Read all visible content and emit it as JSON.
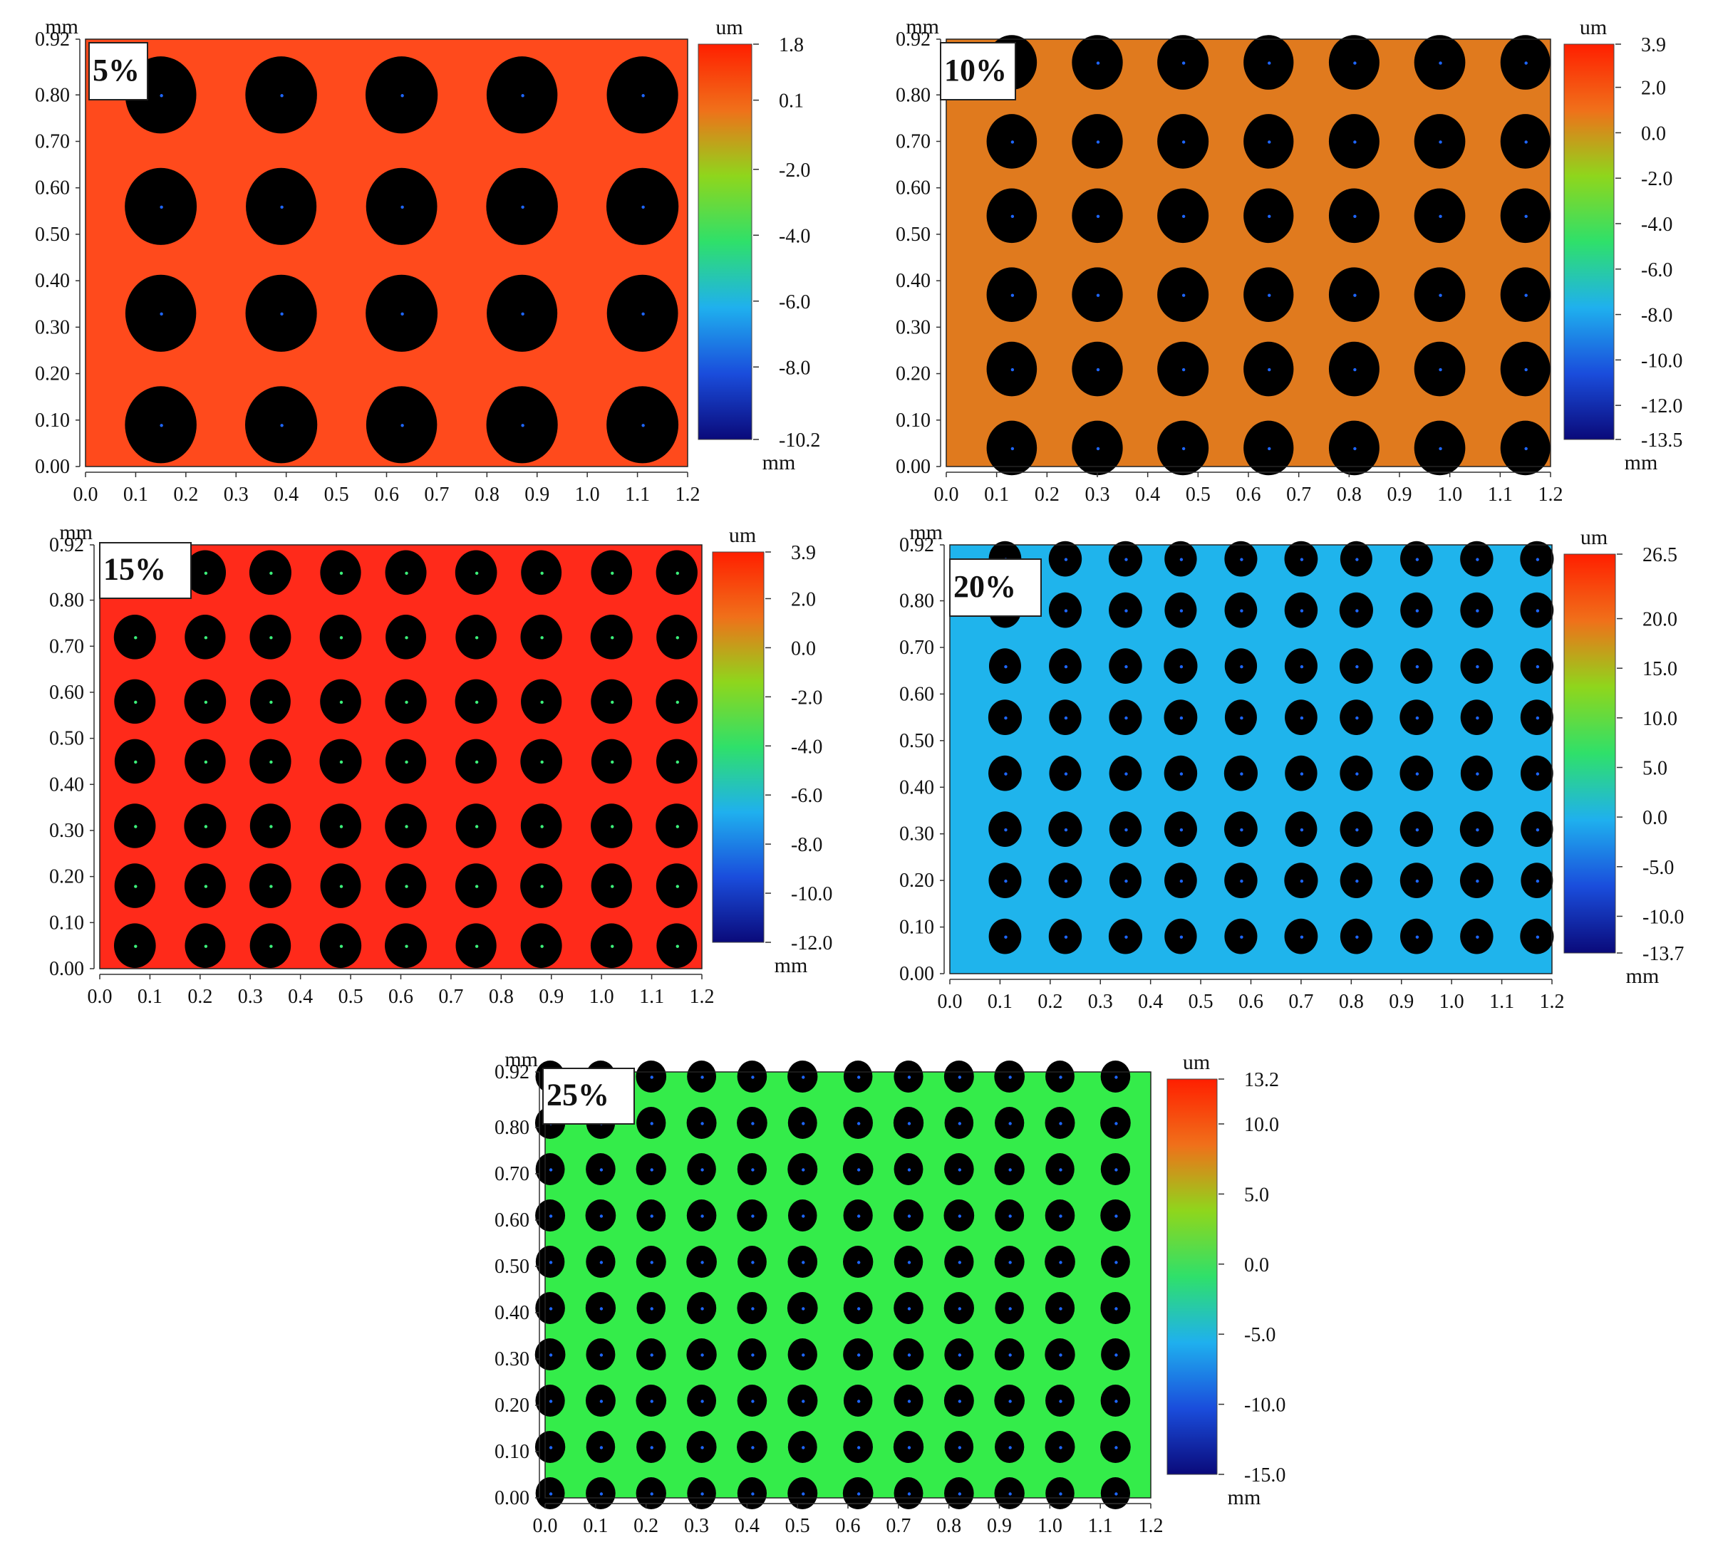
{
  "chart_data": [
    {
      "type": "heatmap",
      "label": "5%",
      "xlabel": "",
      "ylabel": "mm",
      "xunit": "",
      "colorbar_unit_top": "um",
      "colorbar_unit_bottom": "mm",
      "xlim": [
        0.0,
        1.2
      ],
      "ylim": [
        0.0,
        0.92
      ],
      "x_ticks": [
        "0.0",
        "0.1",
        "0.2",
        "0.3",
        "0.4",
        "0.5",
        "0.6",
        "0.7",
        "0.8",
        "0.9",
        "1.0",
        "1.1",
        "1.2"
      ],
      "y_ticks": [
        "0.92",
        "0.80",
        "0.70",
        "0.60",
        "0.50",
        "0.40",
        "0.30",
        "0.20",
        "0.10",
        "0.00"
      ],
      "colorbar_ticks": [
        "1.8",
        "0.1",
        "-2.0",
        "-4.0",
        "-6.0",
        "-8.0",
        "-10.2"
      ],
      "colorbar_range": [
        -10.2,
        1.8
      ],
      "background_color": "#ff4a1c",
      "dot_grid": {
        "x": [
          0.15,
          0.39,
          0.63,
          0.87,
          1.11
        ],
        "y": [
          0.8,
          0.56,
          0.33,
          0.09
        ]
      },
      "dot_marker": "#1e66ff"
    },
    {
      "type": "heatmap",
      "label": "10%",
      "xlabel": "",
      "ylabel": "mm",
      "colorbar_unit_top": "um",
      "colorbar_unit_bottom": "mm",
      "xlim": [
        0.0,
        1.2
      ],
      "ylim": [
        0.0,
        0.92
      ],
      "x_ticks": [
        "0.0",
        "0.1",
        "0.2",
        "0.3",
        "0.4",
        "0.5",
        "0.6",
        "0.7",
        "0.8",
        "0.9",
        "1.0",
        "1.1",
        "1.2"
      ],
      "y_ticks": [
        "0.92",
        "0.80",
        "0.70",
        "0.60",
        "0.50",
        "0.40",
        "0.30",
        "0.20",
        "0.10",
        "0.00"
      ],
      "colorbar_ticks": [
        "3.9",
        "2.0",
        "0.0",
        "-2.0",
        "-4.0",
        "-6.0",
        "-8.0",
        "-10.0",
        "-12.0",
        "-13.5"
      ],
      "colorbar_range": [
        -13.5,
        3.9
      ],
      "background_color": "#e07a1e",
      "dot_grid": {
        "x": [
          0.13,
          0.3,
          0.47,
          0.64,
          0.81,
          0.98,
          1.15
        ],
        "y": [
          0.87,
          0.7,
          0.54,
          0.37,
          0.21,
          0.04
        ]
      },
      "dot_marker": "#1e66ff"
    },
    {
      "type": "heatmap",
      "label": "15%",
      "xlabel": "",
      "ylabel": "mm",
      "colorbar_unit_top": "um",
      "colorbar_unit_bottom": "mm",
      "xlim": [
        0.0,
        1.2
      ],
      "ylim": [
        0.0,
        0.92
      ],
      "x_ticks": [
        "0.0",
        "0.1",
        "0.2",
        "0.3",
        "0.4",
        "0.5",
        "0.6",
        "0.7",
        "0.8",
        "0.9",
        "1.0",
        "1.1",
        "1.2"
      ],
      "y_ticks": [
        "0.92",
        "0.80",
        "0.70",
        "0.60",
        "0.50",
        "0.40",
        "0.30",
        "0.20",
        "0.10",
        "0.00"
      ],
      "colorbar_ticks": [
        "3.9",
        "2.0",
        "0.0",
        "-2.0",
        "-4.0",
        "-6.0",
        "-8.0",
        "-10.0",
        "-12.0"
      ],
      "colorbar_range": [
        -12.0,
        3.9
      ],
      "background_color": "#ff2a1a",
      "dot_grid": {
        "x": [
          0.07,
          0.21,
          0.34,
          0.48,
          0.61,
          0.75,
          0.88,
          1.02,
          1.15
        ],
        "y": [
          0.86,
          0.72,
          0.58,
          0.45,
          0.31,
          0.18,
          0.05
        ]
      },
      "dot_marker": "#3cf07a"
    },
    {
      "type": "heatmap",
      "label": "20%",
      "xlabel": "",
      "ylabel": "mm",
      "colorbar_unit_top": "um",
      "colorbar_unit_bottom": "mm",
      "xlim": [
        0.0,
        1.2
      ],
      "ylim": [
        0.0,
        0.92
      ],
      "x_ticks": [
        "0.0",
        "0.1",
        "0.2",
        "0.3",
        "0.4",
        "0.5",
        "0.6",
        "0.7",
        "0.8",
        "0.9",
        "1.0",
        "1.1",
        "1.2"
      ],
      "y_ticks": [
        "0.92",
        "0.80",
        "0.70",
        "0.60",
        "0.50",
        "0.40",
        "0.30",
        "0.20",
        "0.10",
        "0.00"
      ],
      "colorbar_ticks": [
        "26.5",
        "20.0",
        "15.0",
        "10.0",
        "5.0",
        "0.0",
        "-5.0",
        "-10.0",
        "-13.7"
      ],
      "colorbar_range": [
        -13.7,
        26.5
      ],
      "background_color": "#1fb4ec",
      "dot_grid": {
        "x": [
          0.11,
          0.23,
          0.35,
          0.46,
          0.58,
          0.7,
          0.81,
          0.93,
          1.05,
          1.17
        ],
        "y": [
          0.89,
          0.78,
          0.66,
          0.55,
          0.43,
          0.31,
          0.2,
          0.08
        ]
      },
      "dot_marker": "#1e66ff"
    },
    {
      "type": "heatmap",
      "label": "25%",
      "xlabel": "",
      "ylabel": "mm",
      "colorbar_unit_top": "um",
      "colorbar_unit_bottom": "mm",
      "xlim": [
        0.0,
        1.2
      ],
      "ylim": [
        0.0,
        0.92
      ],
      "x_ticks": [
        "0.0",
        "0.1",
        "0.2",
        "0.3",
        "0.4",
        "0.5",
        "0.6",
        "0.7",
        "0.8",
        "0.9",
        "1.0",
        "1.1",
        "1.2"
      ],
      "y_ticks": [
        "0.92",
        "0.80",
        "0.70",
        "0.60",
        "0.50",
        "0.40",
        "0.30",
        "0.20",
        "0.10",
        "0.00"
      ],
      "colorbar_ticks": [
        "13.2",
        "10.0",
        "5.0",
        "0.0",
        "-5.0",
        "-10.0",
        "-15.0"
      ],
      "colorbar_range": [
        -15.0,
        13.2
      ],
      "background_color": "#34ec4a",
      "dot_grid": {
        "x": [
          0.01,
          0.11,
          0.21,
          0.31,
          0.41,
          0.51,
          0.62,
          0.72,
          0.82,
          0.92,
          1.02,
          1.13
        ],
        "y": [
          0.91,
          0.81,
          0.71,
          0.61,
          0.51,
          0.41,
          0.31,
          0.21,
          0.11,
          0.01
        ]
      },
      "dot_marker": "#1e66ff"
    }
  ],
  "colors": {
    "colormap": [
      "#ff1f00",
      "#f0701a",
      "#8fd61c",
      "#2fe06a",
      "#1fb0ee",
      "#1a4ddc",
      "#0a0a7a"
    ],
    "dot": "#000000",
    "text": "#111111"
  }
}
